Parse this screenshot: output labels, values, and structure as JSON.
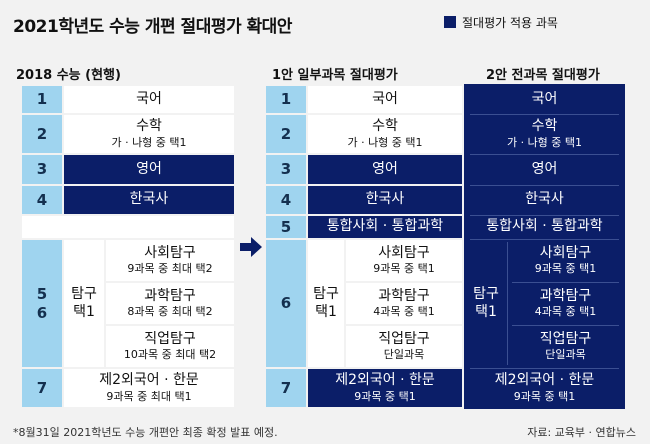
{
  "title": "2021학년도 수능 개편 절대평가 확대안",
  "legend": {
    "label": "절대평가 적용 과목",
    "color": "#0b1e68"
  },
  "columns": {
    "current": "2018 수능 (현행)",
    "plan1": "1안 일부과목 절대평가",
    "plan2": "2안 전과목 절대평가"
  },
  "numbers": [
    "1",
    "2",
    "3",
    "4",
    "5",
    "6",
    "7"
  ],
  "combined_56": [
    "5",
    "6"
  ],
  "subjects": {
    "korean": "국어",
    "math": "수학",
    "math_sub": "가 · 나형 중 택1",
    "english": "영어",
    "history": "한국사",
    "integrated": "통합사회 · 통합과학",
    "inquiry": [
      "탐구",
      "택1"
    ],
    "social": "사회탐구",
    "science": "과학탐구",
    "vocational": "직업탐구",
    "social_sub_current": "9과목 중 최대 택2",
    "science_sub_current": "8과목 중 최대 택2",
    "vocational_sub_current": "10과목 중 최대 택2",
    "social_sub_new": "9과목 중 택1",
    "science_sub_new": "4과목 중 택1",
    "vocational_sub_new": "단일과목",
    "foreign": "제2외국어 · 한문",
    "foreign_sub_current": "9과목 중 최대 택1",
    "foreign_sub_new": "9과목 중 택1"
  },
  "note": "*8월31일 2021학년도 수능 개편안 최종 확정 발표 예정.",
  "source": "자료: 교육부 · 연합뉴스",
  "colors": {
    "absolute": "#0b1e68",
    "number": "#9fd4ef",
    "background": "#f2f2f2"
  }
}
